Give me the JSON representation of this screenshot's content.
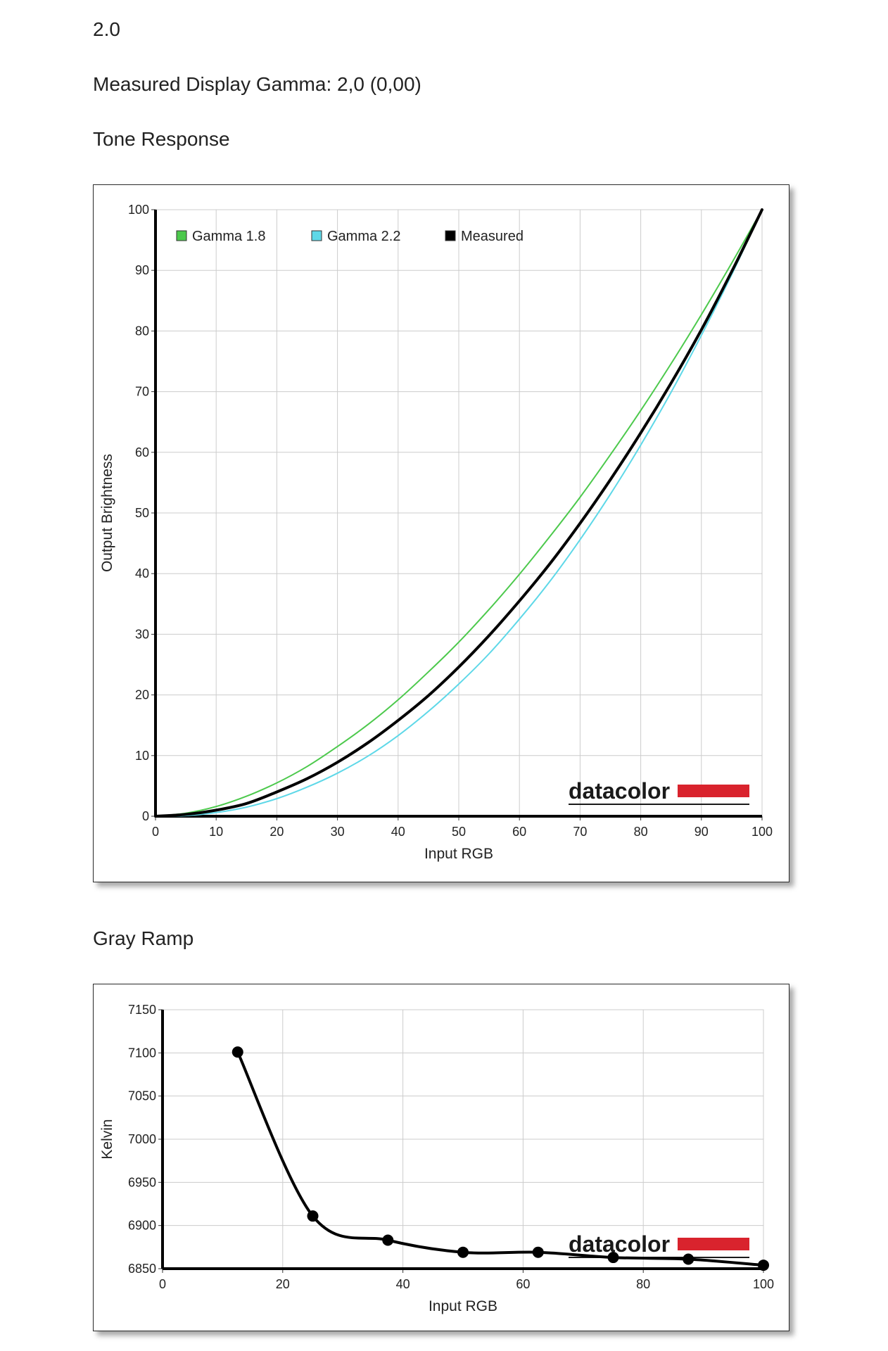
{
  "header": {
    "gamma_value": "2.0",
    "measured_gamma": "Measured Display Gamma: 2,0 (0,00)",
    "tone_title": "Tone Response",
    "gray_title": "Gray Ramp"
  },
  "branding": {
    "logo_text": "datacolor",
    "logo_color": "#d9232d"
  },
  "colors": {
    "gamma18": "#4cc94c",
    "gamma22": "#5ed8e8",
    "measured": "#000000",
    "grid": "#cccccc"
  },
  "chart_data": [
    {
      "type": "line",
      "title": "Tone Response",
      "xlabel": "Input RGB",
      "ylabel": "Output Brightness",
      "xlim": [
        0,
        100
      ],
      "ylim": [
        0,
        100
      ],
      "xticks": [
        0,
        10,
        20,
        30,
        40,
        50,
        60,
        70,
        80,
        90,
        100
      ],
      "yticks": [
        0,
        10,
        20,
        30,
        40,
        50,
        60,
        70,
        80,
        90,
        100
      ],
      "grid": true,
      "legend_position": "top-left",
      "series": [
        {
          "name": "Gamma 1.8",
          "color": "#4cc94c",
          "x": [
            0,
            5,
            10,
            15,
            20,
            25,
            30,
            35,
            40,
            45,
            50,
            55,
            60,
            65,
            70,
            75,
            80,
            85,
            90,
            95,
            100
          ],
          "y": [
            0,
            0.5,
            1.6,
            3.3,
            5.5,
            8.2,
            11.5,
            15.1,
            19.2,
            23.8,
            28.7,
            34.1,
            39.9,
            46.1,
            52.6,
            59.6,
            66.9,
            74.6,
            82.7,
            91.2,
            100
          ]
        },
        {
          "name": "Gamma 2.2",
          "color": "#5ed8e8",
          "x": [
            0,
            5,
            10,
            15,
            20,
            25,
            30,
            35,
            40,
            45,
            50,
            55,
            60,
            65,
            70,
            75,
            80,
            85,
            90,
            95,
            100
          ],
          "y": [
            0,
            0.1,
            0.6,
            1.5,
            2.9,
            4.8,
            7.1,
            9.9,
            13.3,
            17.3,
            21.8,
            26.8,
            32.5,
            38.7,
            45.6,
            53.1,
            61.2,
            69.9,
            79.3,
            89.3,
            100
          ]
        },
        {
          "name": "Measured",
          "color": "#000000",
          "x": [
            0,
            5,
            10,
            15,
            20,
            25,
            30,
            35,
            40,
            45,
            50,
            55,
            60,
            65,
            70,
            75,
            80,
            85,
            90,
            95,
            100
          ],
          "y": [
            0,
            0.3,
            1.0,
            2.1,
            4.0,
            6.2,
            8.9,
            12.1,
            15.8,
            19.9,
            24.6,
            29.8,
            35.5,
            41.6,
            48.3,
            55.5,
            63.2,
            71.4,
            80.2,
            89.8,
            100
          ]
        }
      ],
      "logo": "datacolor"
    },
    {
      "type": "line",
      "title": "Gray Ramp",
      "xlabel": "Input RGB",
      "ylabel": "Kelvin",
      "xlim": [
        0,
        100
      ],
      "ylim": [
        6850,
        7150
      ],
      "xticks": [
        0,
        20,
        40,
        60,
        80,
        100
      ],
      "yticks": [
        6850,
        6900,
        6950,
        7000,
        7050,
        7100,
        7150
      ],
      "grid": true,
      "series": [
        {
          "color": "#000000",
          "x": [
            12.5,
            25,
            37.5,
            50,
            62.5,
            75,
            87.5,
            100
          ],
          "y": [
            7101,
            6911,
            6883,
            6869,
            6869,
            6863,
            6861,
            6854
          ]
        }
      ],
      "logo": "datacolor"
    }
  ]
}
